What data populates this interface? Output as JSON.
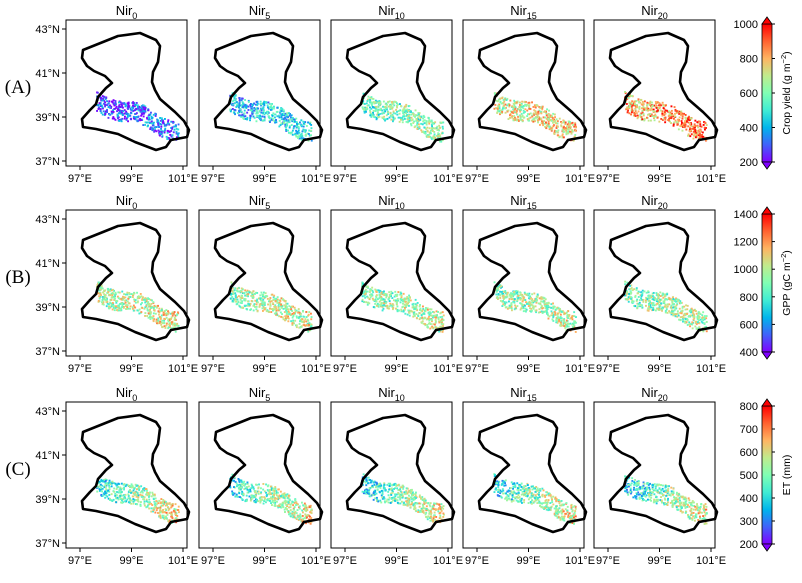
{
  "lat_ticks": [
    "43°N",
    "41°N",
    "39°N",
    "37°N"
  ],
  "lon_ticks": [
    "97°E",
    "99°E",
    "101°E"
  ],
  "scenarios": [
    {
      "base": "Nir",
      "sub": "0"
    },
    {
      "base": "Nir",
      "sub": "5"
    },
    {
      "base": "Nir",
      "sub": "10"
    },
    {
      "base": "Nir",
      "sub": "15"
    },
    {
      "base": "Nir",
      "sub": "20"
    }
  ],
  "rows": [
    {
      "label": "(A)",
      "variable": "crop_yield",
      "colorbar_label": "Crop yield (g m",
      "colorbar_sup": "−2",
      "colorbar_close": ")",
      "colorbar_ticks": [
        "200",
        "400",
        "600",
        "800",
        "1000"
      ],
      "colorbar_range": [
        200,
        1000
      ],
      "panel_levels": [
        0.12,
        0.32,
        0.5,
        0.66,
        0.8
      ]
    },
    {
      "label": "(B)",
      "variable": "gpp",
      "colorbar_label": "GPP (gC m",
      "colorbar_sup": "−2",
      "colorbar_close": ")",
      "colorbar_ticks": [
        "400",
        "600",
        "800",
        "1000",
        "1200",
        "1400"
      ],
      "colorbar_range": [
        400,
        1400
      ],
      "panel_levels": [
        0.6,
        0.58,
        0.56,
        0.55,
        0.54
      ]
    },
    {
      "label": "(C)",
      "variable": "et",
      "colorbar_label": "ET (mm)",
      "colorbar_sup": "",
      "colorbar_close": "",
      "colorbar_ticks": [
        "200",
        "300",
        "400",
        "500",
        "600",
        "700",
        "800"
      ],
      "colorbar_range": [
        200,
        800
      ],
      "panel_levels": [
        0.52,
        0.51,
        0.5,
        0.5,
        0.49
      ]
    }
  ],
  "colormap": "rainbow",
  "colormap_stops": [
    "#8000ff",
    "#4062fa",
    "#00b5eb",
    "#40ecd4",
    "#80ffb4",
    "#c0eb8d",
    "#ffb462",
    "#ff6230",
    "#ff0000"
  ]
}
